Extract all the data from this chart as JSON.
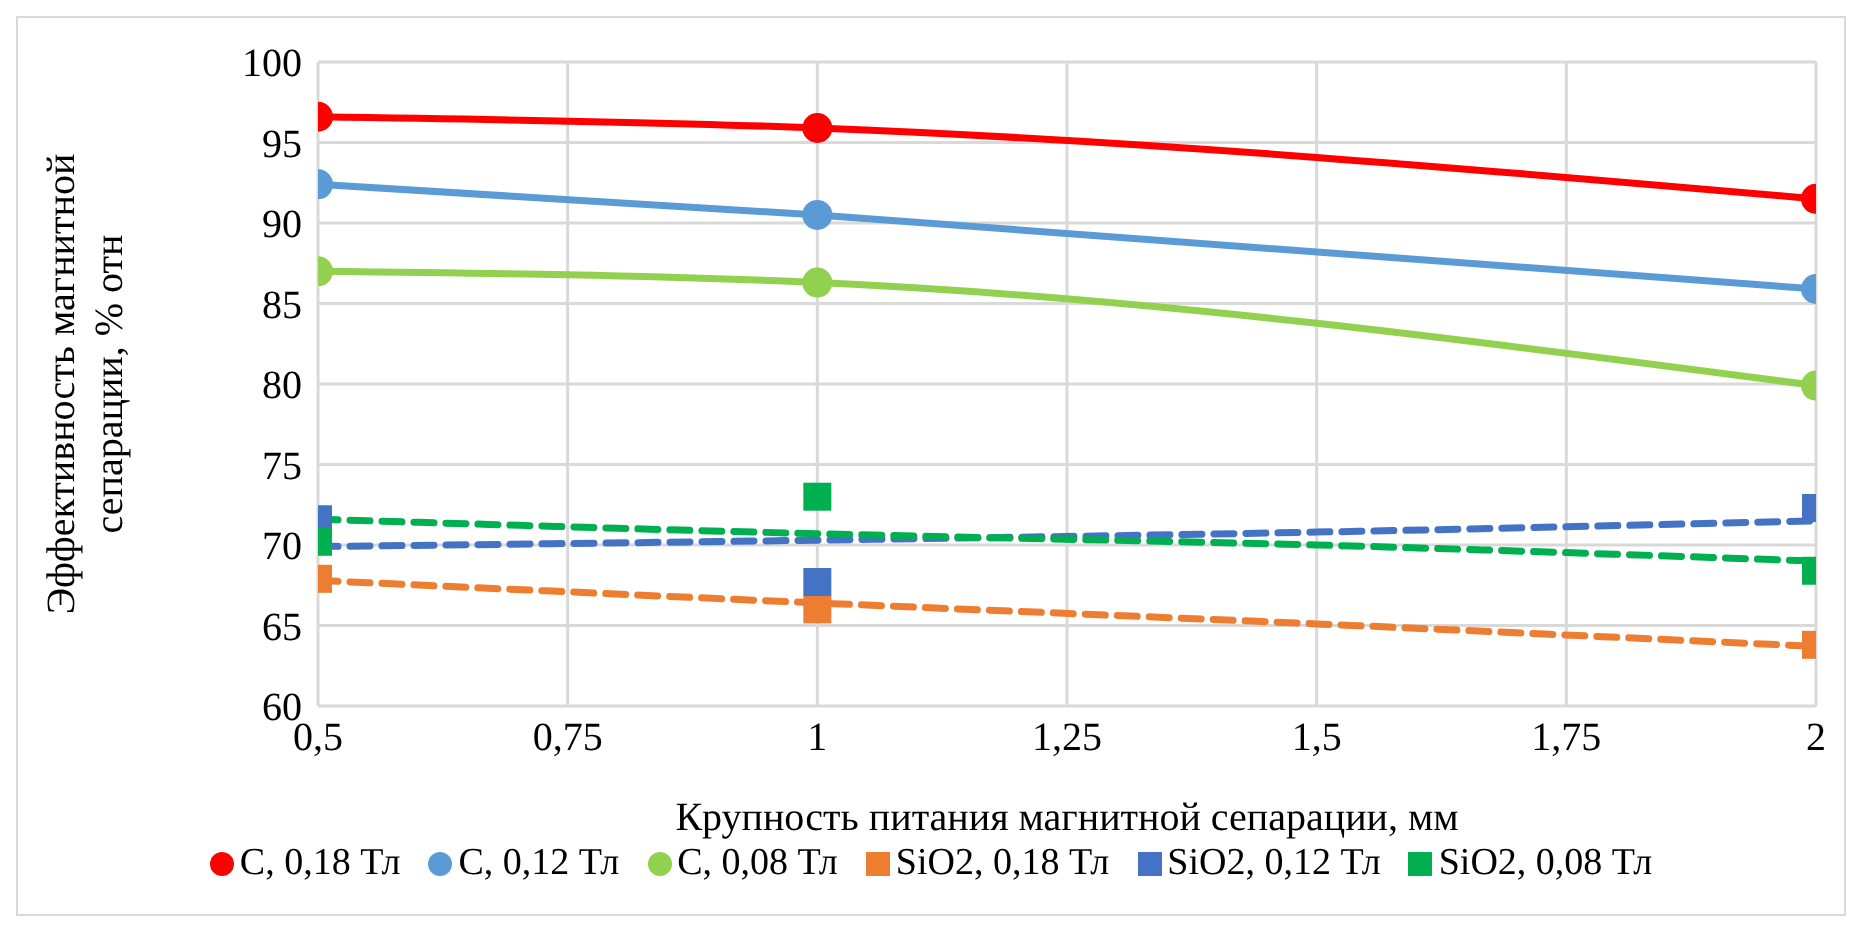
{
  "chart_data": {
    "type": "line",
    "xlabel": "Крупность питания магнитной сепарации, мм",
    "ylabel": "Эффективность магнитной сепарации, % отн",
    "x": [
      0.5,
      1,
      2
    ],
    "xlim": [
      0.5,
      2
    ],
    "xticks": [
      {
        "value": 0.5,
        "label": "0,5"
      },
      {
        "value": 0.75,
        "label": "0,75"
      },
      1,
      {
        "value": 1.25,
        "label": "1,25"
      },
      {
        "value": 1.5,
        "label": "1,5"
      },
      {
        "value": 1.75,
        "label": "1,75"
      },
      2
    ],
    "ylim": [
      60,
      100
    ],
    "yticks": [
      60,
      65,
      70,
      75,
      80,
      85,
      90,
      95,
      100
    ],
    "grid": true,
    "legend": "bottom",
    "series": [
      {
        "name": "C, 0,18 Тл",
        "type": "line",
        "marker": "circle",
        "line_style": "solid",
        "color": "#ff0000",
        "values": [
          96.6,
          95.9,
          91.5
        ]
      },
      {
        "name": "C, 0,12 Тл",
        "type": "line",
        "marker": "circle",
        "line_style": "solid",
        "color": "#5b9bd5",
        "values": [
          92.4,
          90.5,
          85.9
        ]
      },
      {
        "name": "C, 0,08 Тл",
        "type": "line",
        "marker": "circle",
        "line_style": "solid",
        "color": "#92d050",
        "values": [
          87.0,
          86.3,
          79.9
        ]
      },
      {
        "name": "SiO2, 0,18 Тл",
        "type": "scatter",
        "marker": "square",
        "color": "#ed7d31",
        "values": [
          67.9,
          66.0,
          63.8
        ]
      },
      {
        "name": "SiO2, 0,12 Тл",
        "type": "scatter",
        "marker": "square",
        "color": "#4472c4",
        "values": [
          71.6,
          67.7,
          72.3
        ]
      },
      {
        "name": "SiO2, 0,08 Тл",
        "type": "scatter",
        "marker": "square",
        "color": "#00b050",
        "values": [
          70.2,
          73.0,
          68.4
        ]
      },
      {
        "type": "line",
        "marker": "none",
        "line_style": "dashed",
        "color": "#ed7d31",
        "x": [
          0.5,
          1,
          1.5,
          2
        ],
        "values": [
          67.8,
          66.4,
          65.1,
          63.7
        ]
      },
      {
        "type": "line",
        "marker": "none",
        "line_style": "dashed",
        "color": "#4472c4",
        "x": [
          0.5,
          1,
          1.5,
          2
        ],
        "values": [
          69.9,
          70.3,
          70.8,
          71.5
        ]
      },
      {
        "type": "line",
        "marker": "none",
        "line_style": "dashed",
        "color": "#00b050",
        "x": [
          0.5,
          1,
          1.5,
          2
        ],
        "values": [
          71.6,
          70.7,
          70.0,
          69.0
        ]
      }
    ]
  }
}
